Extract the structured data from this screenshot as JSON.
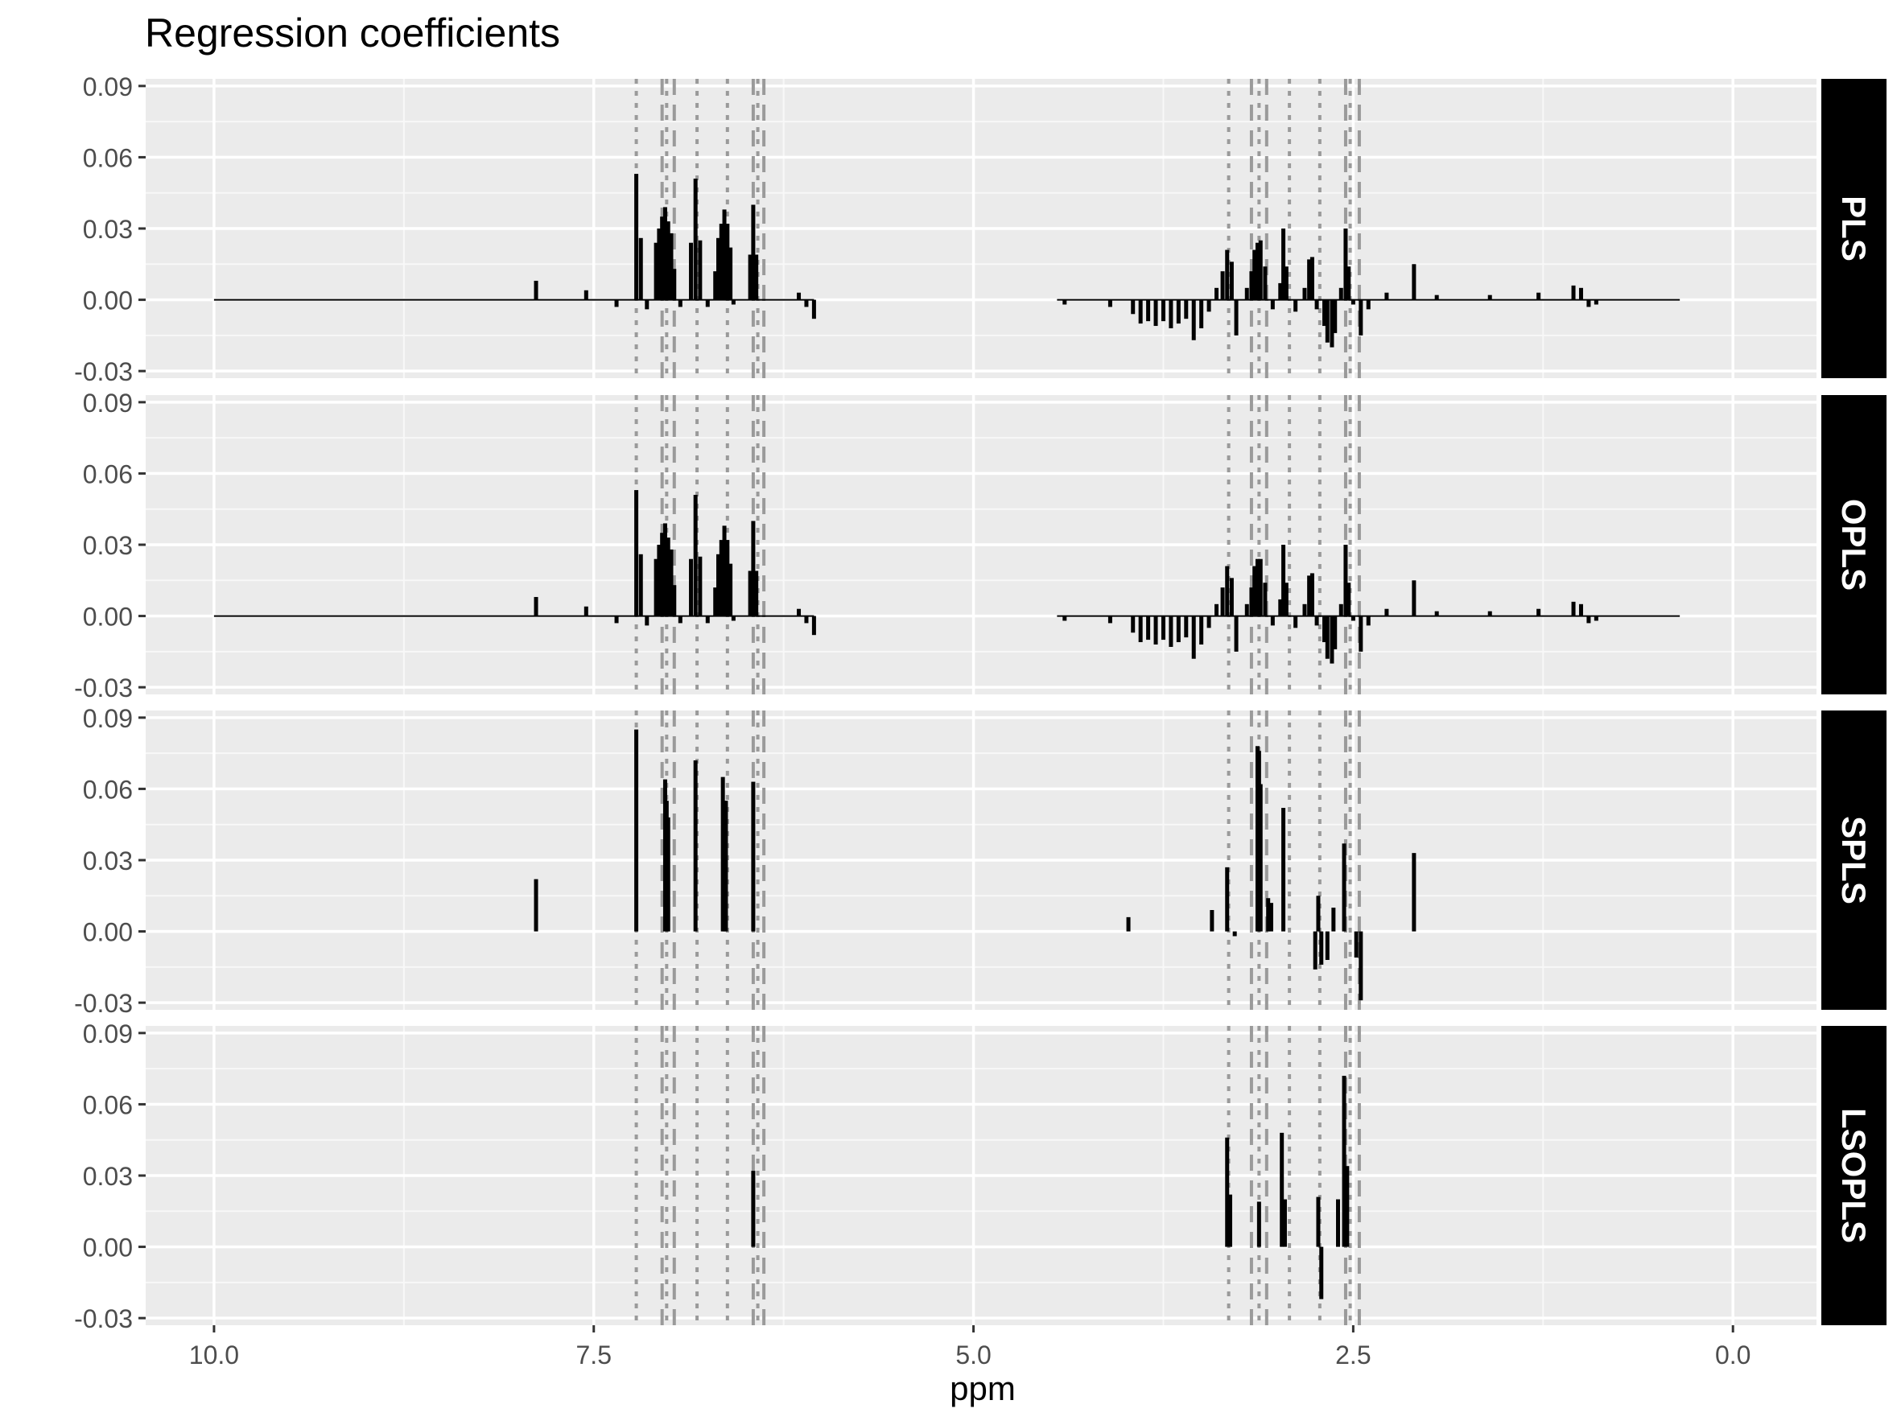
{
  "chart_data": {
    "type": "bar",
    "title": "Regression coefficients",
    "xlabel": "ppm",
    "ylabel": "",
    "x_reversed": true,
    "xlim": [
      10.45,
      -0.55
    ],
    "ylim": [
      -0.033,
      0.093
    ],
    "x_ticks": [
      10.0,
      7.5,
      5.0,
      2.5,
      0.0
    ],
    "x_tick_labels": [
      "10.0",
      "7.5",
      "5.0",
      "2.5",
      "0.0"
    ],
    "y_ticks": [
      -0.03,
      0.0,
      0.03,
      0.06,
      0.09
    ],
    "y_tick_labels": [
      "-0.03",
      "0.00",
      "0.03",
      "0.06",
      "0.09"
    ],
    "grid": true,
    "legend": "none",
    "dotted_vlines_ppm": [
      7.22,
      7.02,
      6.82,
      6.62,
      6.42,
      3.32,
      3.12,
      2.92,
      2.72,
      2.52
    ],
    "dashed_vlines_ppm": [
      7.05,
      6.97,
      6.45,
      6.38,
      3.17,
      3.07,
      2.55,
      2.46
    ],
    "panels": [
      {
        "name": "PLS",
        "bars": [
          {
            "x": 7.88,
            "y": 0.008
          },
          {
            "x": 7.55,
            "y": 0.004
          },
          {
            "x": 7.35,
            "y": -0.003
          },
          {
            "x": 7.22,
            "y": 0.053
          },
          {
            "x": 7.19,
            "y": 0.026
          },
          {
            "x": 7.15,
            "y": -0.004
          },
          {
            "x": 7.09,
            "y": 0.024
          },
          {
            "x": 7.07,
            "y": 0.03
          },
          {
            "x": 7.05,
            "y": 0.035
          },
          {
            "x": 7.03,
            "y": 0.039
          },
          {
            "x": 7.01,
            "y": 0.033
          },
          {
            "x": 6.99,
            "y": 0.028
          },
          {
            "x": 6.97,
            "y": 0.013
          },
          {
            "x": 6.93,
            "y": -0.003
          },
          {
            "x": 6.86,
            "y": 0.024
          },
          {
            "x": 6.83,
            "y": 0.051
          },
          {
            "x": 6.8,
            "y": 0.025
          },
          {
            "x": 6.75,
            "y": -0.003
          },
          {
            "x": 6.7,
            "y": 0.012
          },
          {
            "x": 6.68,
            "y": 0.026
          },
          {
            "x": 6.66,
            "y": 0.032
          },
          {
            "x": 6.64,
            "y": 0.038
          },
          {
            "x": 6.62,
            "y": 0.032
          },
          {
            "x": 6.6,
            "y": 0.022
          },
          {
            "x": 6.58,
            "y": -0.002
          },
          {
            "x": 6.47,
            "y": 0.019
          },
          {
            "x": 6.45,
            "y": 0.04
          },
          {
            "x": 6.43,
            "y": 0.019
          },
          {
            "x": 6.15,
            "y": 0.003
          },
          {
            "x": 6.1,
            "y": -0.003
          },
          {
            "x": 6.05,
            "y": -0.008
          },
          {
            "x": 4.4,
            "y": -0.002
          },
          {
            "x": 4.1,
            "y": -0.003
          },
          {
            "x": 3.95,
            "y": -0.006
          },
          {
            "x": 3.9,
            "y": -0.01
          },
          {
            "x": 3.85,
            "y": -0.009
          },
          {
            "x": 3.8,
            "y": -0.011
          },
          {
            "x": 3.75,
            "y": -0.009
          },
          {
            "x": 3.7,
            "y": -0.012
          },
          {
            "x": 3.65,
            "y": -0.01
          },
          {
            "x": 3.6,
            "y": -0.008
          },
          {
            "x": 3.55,
            "y": -0.017
          },
          {
            "x": 3.5,
            "y": -0.012
          },
          {
            "x": 3.45,
            "y": -0.005
          },
          {
            "x": 3.4,
            "y": 0.005
          },
          {
            "x": 3.36,
            "y": 0.012
          },
          {
            "x": 3.33,
            "y": 0.021
          },
          {
            "x": 3.3,
            "y": 0.016
          },
          {
            "x": 3.27,
            "y": -0.015
          },
          {
            "x": 3.2,
            "y": 0.005
          },
          {
            "x": 3.17,
            "y": 0.012
          },
          {
            "x": 3.15,
            "y": 0.021
          },
          {
            "x": 3.13,
            "y": 0.024
          },
          {
            "x": 3.11,
            "y": 0.025
          },
          {
            "x": 3.08,
            "y": 0.014
          },
          {
            "x": 3.03,
            "y": -0.004
          },
          {
            "x": 2.98,
            "y": 0.007
          },
          {
            "x": 2.96,
            "y": 0.03
          },
          {
            "x": 2.94,
            "y": 0.014
          },
          {
            "x": 2.88,
            "y": -0.005
          },
          {
            "x": 2.82,
            "y": 0.005
          },
          {
            "x": 2.79,
            "y": 0.017
          },
          {
            "x": 2.77,
            "y": 0.018
          },
          {
            "x": 2.74,
            "y": -0.004
          },
          {
            "x": 2.69,
            "y": -0.011
          },
          {
            "x": 2.67,
            "y": -0.018
          },
          {
            "x": 2.64,
            "y": -0.02
          },
          {
            "x": 2.62,
            "y": -0.014
          },
          {
            "x": 2.58,
            "y": 0.005
          },
          {
            "x": 2.55,
            "y": 0.03
          },
          {
            "x": 2.53,
            "y": 0.014
          },
          {
            "x": 2.5,
            "y": -0.002
          },
          {
            "x": 2.45,
            "y": -0.015
          },
          {
            "x": 2.4,
            "y": -0.004
          },
          {
            "x": 2.28,
            "y": 0.003
          },
          {
            "x": 2.1,
            "y": 0.015
          },
          {
            "x": 1.95,
            "y": 0.002
          },
          {
            "x": 1.6,
            "y": 0.002
          },
          {
            "x": 1.28,
            "y": 0.003
          },
          {
            "x": 1.05,
            "y": 0.006
          },
          {
            "x": 1.0,
            "y": 0.005
          },
          {
            "x": 0.95,
            "y": -0.003
          },
          {
            "x": 0.9,
            "y": -0.002
          }
        ]
      },
      {
        "name": "OPLS",
        "bars": [
          {
            "x": 7.88,
            "y": 0.008
          },
          {
            "x": 7.55,
            "y": 0.004
          },
          {
            "x": 7.35,
            "y": -0.003
          },
          {
            "x": 7.22,
            "y": 0.053
          },
          {
            "x": 7.19,
            "y": 0.026
          },
          {
            "x": 7.15,
            "y": -0.004
          },
          {
            "x": 7.09,
            "y": 0.024
          },
          {
            "x": 7.07,
            "y": 0.03
          },
          {
            "x": 7.05,
            "y": 0.035
          },
          {
            "x": 7.03,
            "y": 0.039
          },
          {
            "x": 7.01,
            "y": 0.033
          },
          {
            "x": 6.99,
            "y": 0.028
          },
          {
            "x": 6.97,
            "y": 0.013
          },
          {
            "x": 6.93,
            "y": -0.003
          },
          {
            "x": 6.86,
            "y": 0.024
          },
          {
            "x": 6.83,
            "y": 0.051
          },
          {
            "x": 6.8,
            "y": 0.025
          },
          {
            "x": 6.75,
            "y": -0.003
          },
          {
            "x": 6.7,
            "y": 0.012
          },
          {
            "x": 6.68,
            "y": 0.026
          },
          {
            "x": 6.66,
            "y": 0.032
          },
          {
            "x": 6.64,
            "y": 0.038
          },
          {
            "x": 6.62,
            "y": 0.032
          },
          {
            "x": 6.6,
            "y": 0.022
          },
          {
            "x": 6.58,
            "y": -0.002
          },
          {
            "x": 6.47,
            "y": 0.019
          },
          {
            "x": 6.45,
            "y": 0.04
          },
          {
            "x": 6.43,
            "y": 0.019
          },
          {
            "x": 6.15,
            "y": 0.003
          },
          {
            "x": 6.1,
            "y": -0.003
          },
          {
            "x": 6.05,
            "y": -0.008
          },
          {
            "x": 4.4,
            "y": -0.002
          },
          {
            "x": 4.1,
            "y": -0.003
          },
          {
            "x": 3.95,
            "y": -0.007
          },
          {
            "x": 3.9,
            "y": -0.011
          },
          {
            "x": 3.85,
            "y": -0.01
          },
          {
            "x": 3.8,
            "y": -0.012
          },
          {
            "x": 3.75,
            "y": -0.01
          },
          {
            "x": 3.7,
            "y": -0.013
          },
          {
            "x": 3.65,
            "y": -0.011
          },
          {
            "x": 3.6,
            "y": -0.009
          },
          {
            "x": 3.55,
            "y": -0.018
          },
          {
            "x": 3.5,
            "y": -0.012
          },
          {
            "x": 3.45,
            "y": -0.005
          },
          {
            "x": 3.4,
            "y": 0.005
          },
          {
            "x": 3.36,
            "y": 0.012
          },
          {
            "x": 3.33,
            "y": 0.021
          },
          {
            "x": 3.3,
            "y": 0.016
          },
          {
            "x": 3.27,
            "y": -0.015
          },
          {
            "x": 3.2,
            "y": 0.005
          },
          {
            "x": 3.17,
            "y": 0.012
          },
          {
            "x": 3.15,
            "y": 0.021
          },
          {
            "x": 3.13,
            "y": 0.024
          },
          {
            "x": 3.11,
            "y": 0.024
          },
          {
            "x": 3.08,
            "y": 0.014
          },
          {
            "x": 3.03,
            "y": -0.004
          },
          {
            "x": 2.98,
            "y": 0.007
          },
          {
            "x": 2.96,
            "y": 0.03
          },
          {
            "x": 2.94,
            "y": 0.014
          },
          {
            "x": 2.88,
            "y": -0.005
          },
          {
            "x": 2.82,
            "y": 0.005
          },
          {
            "x": 2.79,
            "y": 0.017
          },
          {
            "x": 2.77,
            "y": 0.018
          },
          {
            "x": 2.74,
            "y": -0.004
          },
          {
            "x": 2.69,
            "y": -0.011
          },
          {
            "x": 2.67,
            "y": -0.018
          },
          {
            "x": 2.64,
            "y": -0.02
          },
          {
            "x": 2.62,
            "y": -0.014
          },
          {
            "x": 2.58,
            "y": 0.005
          },
          {
            "x": 2.55,
            "y": 0.03
          },
          {
            "x": 2.53,
            "y": 0.014
          },
          {
            "x": 2.5,
            "y": -0.002
          },
          {
            "x": 2.45,
            "y": -0.015
          },
          {
            "x": 2.4,
            "y": -0.004
          },
          {
            "x": 2.28,
            "y": 0.003
          },
          {
            "x": 2.1,
            "y": 0.015
          },
          {
            "x": 1.95,
            "y": 0.002
          },
          {
            "x": 1.6,
            "y": 0.002
          },
          {
            "x": 1.28,
            "y": 0.003
          },
          {
            "x": 1.05,
            "y": 0.006
          },
          {
            "x": 1.0,
            "y": 0.005
          },
          {
            "x": 0.95,
            "y": -0.003
          },
          {
            "x": 0.9,
            "y": -0.002
          }
        ]
      },
      {
        "name": "SPLS",
        "bars": [
          {
            "x": 7.88,
            "y": 0.022
          },
          {
            "x": 7.22,
            "y": 0.085
          },
          {
            "x": 7.03,
            "y": 0.064
          },
          {
            "x": 7.02,
            "y": 0.055
          },
          {
            "x": 7.01,
            "y": 0.048
          },
          {
            "x": 6.83,
            "y": 0.072
          },
          {
            "x": 6.65,
            "y": 0.065
          },
          {
            "x": 6.64,
            "y": 0.055
          },
          {
            "x": 6.63,
            "y": 0.055
          },
          {
            "x": 6.45,
            "y": 0.063
          },
          {
            "x": 3.98,
            "y": 0.006
          },
          {
            "x": 3.43,
            "y": 0.009
          },
          {
            "x": 3.33,
            "y": 0.027
          },
          {
            "x": 3.28,
            "y": -0.002
          },
          {
            "x": 3.13,
            "y": 0.078
          },
          {
            "x": 3.12,
            "y": 0.076
          },
          {
            "x": 3.11,
            "y": 0.062
          },
          {
            "x": 3.06,
            "y": 0.014
          },
          {
            "x": 3.04,
            "y": 0.012
          },
          {
            "x": 2.96,
            "y": 0.052
          },
          {
            "x": 2.75,
            "y": -0.016
          },
          {
            "x": 2.73,
            "y": 0.015
          },
          {
            "x": 2.71,
            "y": -0.014
          },
          {
            "x": 2.67,
            "y": -0.012
          },
          {
            "x": 2.63,
            "y": 0.01
          },
          {
            "x": 2.56,
            "y": 0.037
          },
          {
            "x": 2.48,
            "y": -0.011
          },
          {
            "x": 2.45,
            "y": -0.029
          },
          {
            "x": 2.1,
            "y": 0.033
          }
        ]
      },
      {
        "name": "LSOPLS",
        "bars": [
          {
            "x": 6.45,
            "y": 0.032
          },
          {
            "x": 3.33,
            "y": 0.046
          },
          {
            "x": 3.31,
            "y": 0.022
          },
          {
            "x": 3.12,
            "y": 0.019
          },
          {
            "x": 2.97,
            "y": 0.048
          },
          {
            "x": 2.95,
            "y": 0.02
          },
          {
            "x": 2.73,
            "y": 0.021
          },
          {
            "x": 2.71,
            "y": -0.022
          },
          {
            "x": 2.6,
            "y": 0.02
          },
          {
            "x": 2.56,
            "y": 0.072
          },
          {
            "x": 2.54,
            "y": 0.034
          }
        ]
      }
    ]
  }
}
